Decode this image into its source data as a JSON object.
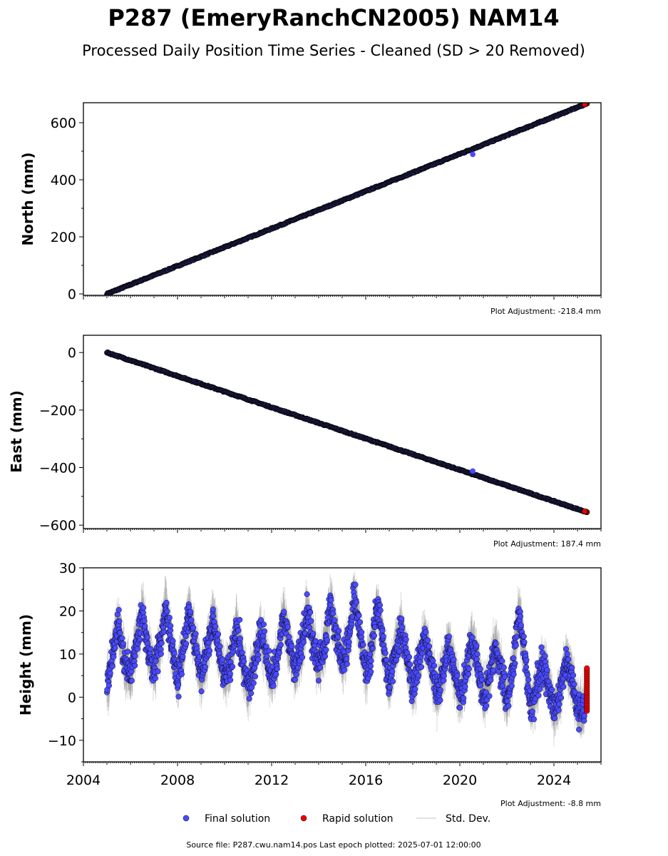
{
  "figure": {
    "title": "P287 (EmeryRanchCN2005) NAM14",
    "subtitle": "Processed Daily Position Time Series - Cleaned (SD > 20 Removed)",
    "source": "Source file: P287.cwu.nam14.pos  Last epoch plotted: 2025-07-01 12:00:00"
  },
  "legend": {
    "final": "Final solution",
    "rapid": "Rapid solution",
    "std": "Std. Dev."
  },
  "colors": {
    "final": "#4a4aff",
    "rapid": "#ee0000",
    "edge": "#000000",
    "std": "#9a9a9a"
  },
  "chart_data": [
    {
      "type": "scatter",
      "ylabel": "North (mm)",
      "adjustment": "Plot Adjustment: -218.4 mm",
      "xlim": [
        2004.0,
        2026.0
      ],
      "ylim": [
        -5,
        670
      ],
      "yticks": [
        0,
        200,
        400,
        600
      ],
      "ytick_labels": [
        "0",
        "200",
        "400",
        "600"
      ],
      "series": [
        {
          "name": "Final solution",
          "x": [
            2005.0,
            2006.0,
            2007.0,
            2008.0,
            2009.0,
            2010.0,
            2011.0,
            2012.0,
            2013.0,
            2014.0,
            2015.0,
            2016.0,
            2017.0,
            2018.0,
            2019.0,
            2020.0,
            2021.0,
            2022.0,
            2023.0,
            2024.0,
            2025.0,
            2020.55
          ],
          "y": [
            0,
            32,
            65,
            97,
            130,
            164,
            197,
            228,
            261,
            294,
            327,
            360,
            393,
            426,
            459,
            493,
            527,
            560,
            594,
            627,
            656,
            489
          ]
        },
        {
          "name": "Rapid solution",
          "x": [
            2025.4
          ],
          "y": [
            667
          ]
        }
      ],
      "trend": {
        "x": [
          2005.0,
          2025.4
        ],
        "y": [
          0,
          667
        ]
      }
    },
    {
      "type": "scatter",
      "ylabel": "East (mm)",
      "adjustment": "Plot Adjustment: 187.4 mm",
      "xlim": [
        2004.0,
        2026.0
      ],
      "ylim": [
        -612,
        60
      ],
      "yticks": [
        0,
        -200,
        -400,
        -600
      ],
      "ytick_labels": [
        "0",
        "−200",
        "−400",
        "−600"
      ],
      "series": [
        {
          "name": "Final solution",
          "x": [
            2005.0,
            2006.0,
            2007.0,
            2008.0,
            2009.0,
            2010.0,
            2011.0,
            2012.0,
            2013.0,
            2014.0,
            2015.0,
            2016.0,
            2017.0,
            2018.0,
            2019.0,
            2020.0,
            2021.0,
            2022.0,
            2023.0,
            2024.0,
            2025.0,
            2020.55
          ],
          "y": [
            0,
            -40,
            -65,
            -92,
            -118,
            -145,
            -170,
            -195,
            -222,
            -250,
            -276,
            -302,
            -330,
            -355,
            -380,
            -408,
            -440,
            -465,
            -492,
            -518,
            -545,
            -412
          ]
        },
        {
          "name": "Rapid solution",
          "x": [
            2025.4
          ],
          "y": [
            -555
          ]
        }
      ],
      "trend": {
        "x": [
          2005.0,
          2025.4
        ],
        "y": [
          0,
          -555
        ]
      }
    },
    {
      "type": "scatter",
      "ylabel": "Height (mm)",
      "adjustment": "Plot Adjustment: -8.8 mm",
      "xlim": [
        2004.0,
        2026.0
      ],
      "ylim": [
        -15,
        30
      ],
      "yticks": [
        -10,
        0,
        10,
        20,
        30
      ],
      "ytick_labels": [
        "−10",
        "0",
        "10",
        "20",
        "30"
      ],
      "xticks": [
        2004,
        2008,
        2012,
        2016,
        2020,
        2024
      ],
      "xtick_labels": [
        "2004",
        "2008",
        "2012",
        "2016",
        "2020",
        "2024"
      ],
      "series": [
        {
          "name": "Final solution",
          "x": [
            2005.0,
            2005.25,
            2005.5,
            2005.75,
            2006.0,
            2006.25,
            2006.5,
            2006.75,
            2007.0,
            2007.25,
            2007.5,
            2007.75,
            2008.0,
            2008.25,
            2008.5,
            2008.75,
            2009.0,
            2009.25,
            2009.5,
            2009.75,
            2010.0,
            2010.25,
            2010.5,
            2010.75,
            2011.0,
            2011.25,
            2011.5,
            2011.75,
            2012.0,
            2012.25,
            2012.5,
            2012.75,
            2013.0,
            2013.25,
            2013.5,
            2013.75,
            2014.0,
            2014.25,
            2014.5,
            2014.75,
            2015.0,
            2015.25,
            2015.5,
            2015.75,
            2016.0,
            2016.25,
            2016.5,
            2016.75,
            2017.0,
            2017.25,
            2017.5,
            2017.75,
            2018.0,
            2018.25,
            2018.5,
            2018.75,
            2019.0,
            2019.25,
            2019.5,
            2019.75,
            2020.0,
            2020.25,
            2020.5,
            2020.75,
            2021.0,
            2021.25,
            2021.5,
            2021.75,
            2022.0,
            2022.25,
            2022.5,
            2022.75,
            2023.0,
            2023.25,
            2023.5,
            2023.75,
            2024.0,
            2024.25,
            2024.5,
            2024.75,
            2025.0
          ],
          "y": [
            2,
            10,
            17,
            8,
            5,
            12,
            20,
            11,
            6,
            12,
            21,
            12,
            4,
            11,
            20,
            12,
            5,
            10,
            19,
            11,
            5,
            8,
            17,
            9,
            2,
            7,
            16,
            10,
            4,
            9,
            19,
            12,
            6,
            11,
            20,
            13,
            7,
            12,
            22,
            14,
            8,
            12,
            24,
            15,
            6,
            11,
            22,
            12,
            3,
            10,
            16,
            9,
            2,
            8,
            14,
            8,
            1,
            5,
            12,
            7,
            0,
            5,
            13,
            8,
            0,
            4,
            12,
            6,
            -1,
            6,
            20,
            10,
            -3,
            2,
            8,
            4,
            -4,
            1,
            9,
            5,
            -3
          ]
        },
        {
          "name": "Rapid solution",
          "x": [
            2025.4,
            2025.4,
            2025.4,
            2025.4,
            2025.4,
            2025.4
          ],
          "y": [
            7,
            5,
            3,
            1,
            -1,
            -3.2
          ]
        }
      ],
      "sigma_mm": 3.5
    }
  ]
}
